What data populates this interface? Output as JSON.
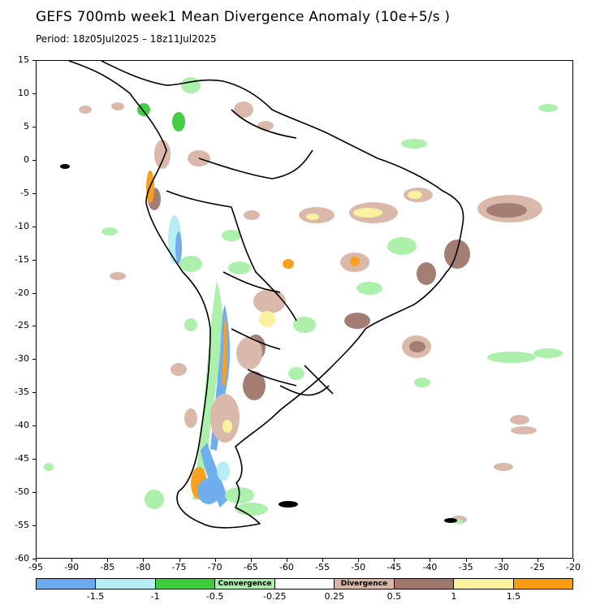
{
  "title": "GEFS 700mb week1 Mean Divergence Anomaly (10e+5/s )",
  "period": "Period: 18z05Jul2025 – 18z11Jul2025",
  "map": {
    "region": "South America",
    "lon_range": [
      -95,
      -20
    ],
    "lat_range": [
      -60,
      15
    ],
    "y_ticks": [
      "15",
      "10",
      "5",
      "0",
      "-5",
      "-10",
      "-15",
      "-20",
      "-25",
      "-30",
      "-35",
      "-40",
      "-45",
      "-50",
      "-55",
      "-60"
    ],
    "x_ticks": [
      "-95",
      "-90",
      "-85",
      "-80",
      "-75",
      "-70",
      "-65",
      "-60",
      "-55",
      "-50",
      "-45",
      "-40",
      "-35",
      "-30",
      "-25",
      "-20"
    ]
  },
  "legend": {
    "segments": [
      {
        "color": "#6aaaee",
        "label": ""
      },
      {
        "color": "#b4eef4",
        "label": ""
      },
      {
        "color": "#3ccc3c",
        "label": ""
      },
      {
        "color": "#a8f0a8",
        "label": "Convergence"
      },
      {
        "color": "#ffffff",
        "label": ""
      },
      {
        "color": "#d9b6a6",
        "label": "Divergence"
      },
      {
        "color": "#a0786c",
        "label": ""
      },
      {
        "color": "#faf29c",
        "label": ""
      },
      {
        "color": "#fa9b14",
        "label": ""
      }
    ],
    "breaks": [
      "-1.5",
      "-1",
      "-0.5",
      "-0.25",
      "0.25",
      "0.5",
      "1",
      "1.5"
    ]
  },
  "colors": {
    "strong_convergence": "#6aaaee",
    "convergence": "#3ccc3c",
    "weak_convergence": "#a8f0a8",
    "weak_divergence": "#d9b6a6",
    "divergence": "#a0786c",
    "strong_divergence": "#faf29c",
    "extreme_divergence": "#fa9b14"
  }
}
